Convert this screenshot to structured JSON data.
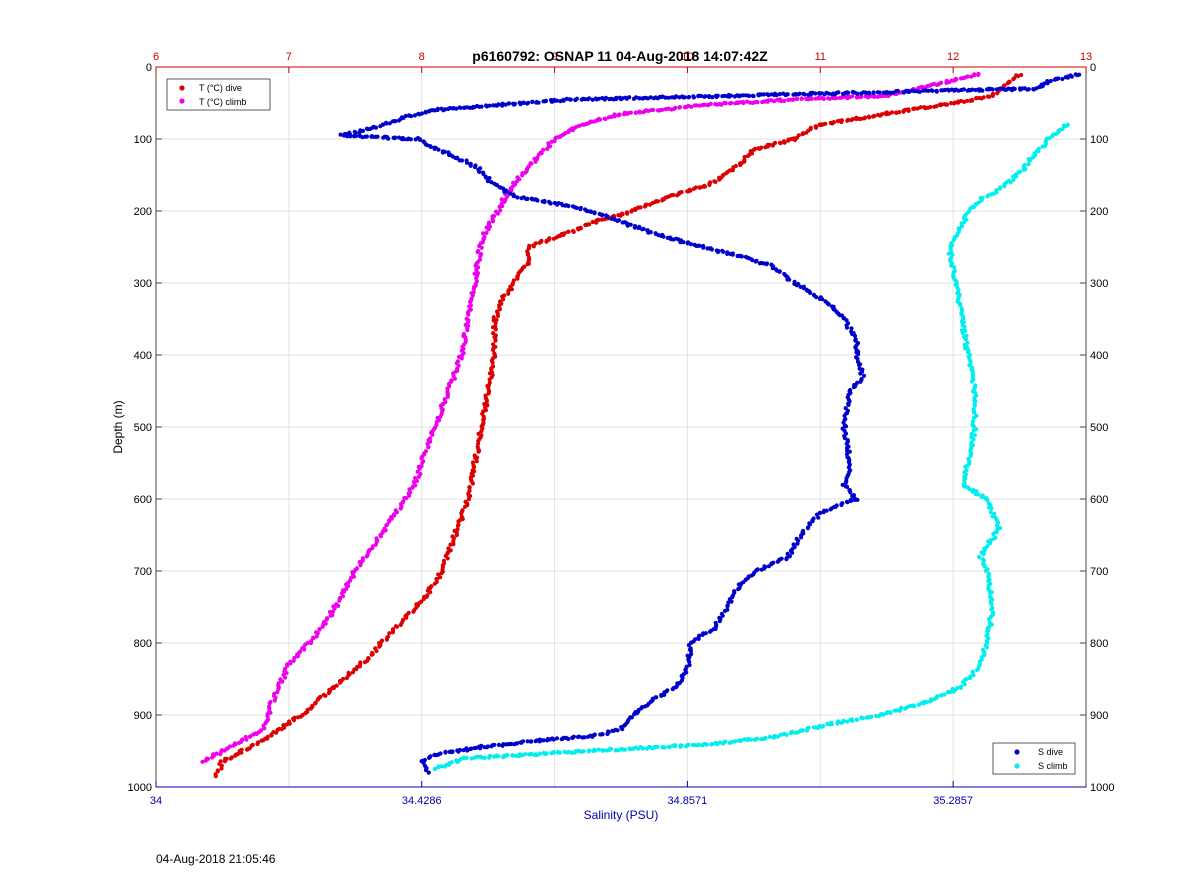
{
  "chart_data": {
    "type": "scatter",
    "title": "p6160792: OSNAP 11 04-Aug-2018 14:07:42Z",
    "ylabel": "Depth (m)",
    "xlabel_bottom": "Salinity (PSU)",
    "ylim": [
      0,
      1000
    ],
    "y_reversed": true,
    "y_ticks": [
      0,
      100,
      200,
      300,
      400,
      500,
      600,
      700,
      800,
      900,
      1000
    ],
    "x_top_axis": {
      "label": "",
      "range": [
        6,
        13
      ],
      "ticks": [
        "6",
        "7",
        "8",
        "9",
        "10",
        "11",
        "12",
        "13"
      ],
      "color": "#cc0000"
    },
    "x_bottom_axis": {
      "label": "Salinity (PSU)",
      "range": [
        34,
        35.5
      ],
      "ticks": [
        "34",
        "34.4286",
        "34.8571",
        "35.2857"
      ],
      "tick_values": [
        34,
        34.4286,
        34.8571,
        35.2857
      ],
      "color": "#0000aa"
    },
    "grid": true,
    "legend_top": {
      "placement": "top-left",
      "entries": [
        "T (°C) dive",
        "T (°C) climb"
      ]
    },
    "legend_bottom": {
      "placement": "bottom-right",
      "entries": [
        "S dive",
        "S climb"
      ]
    },
    "series": [
      {
        "name": "T (°C) dive",
        "axis": "top",
        "color": "#dd0000",
        "points": [
          [
            12.5,
            10
          ],
          [
            12.4,
            25
          ],
          [
            12.3,
            40
          ],
          [
            12.0,
            50
          ],
          [
            11.5,
            65
          ],
          [
            11.0,
            80
          ],
          [
            10.8,
            100
          ],
          [
            10.5,
            115
          ],
          [
            10.4,
            135
          ],
          [
            10.2,
            160
          ],
          [
            9.8,
            185
          ],
          [
            9.5,
            205
          ],
          [
            9.3,
            215
          ],
          [
            9.1,
            230
          ],
          [
            8.8,
            250
          ],
          [
            8.8,
            270
          ],
          [
            8.7,
            300
          ],
          [
            8.6,
            325
          ],
          [
            8.55,
            350
          ],
          [
            8.55,
            400
          ],
          [
            8.5,
            450
          ],
          [
            8.45,
            500
          ],
          [
            8.4,
            550
          ],
          [
            8.35,
            600
          ],
          [
            8.25,
            650
          ],
          [
            8.15,
            700
          ],
          [
            8.05,
            730
          ],
          [
            7.9,
            760
          ],
          [
            7.75,
            790
          ],
          [
            7.6,
            820
          ],
          [
            7.35,
            860
          ],
          [
            7.1,
            900
          ],
          [
            6.8,
            935
          ],
          [
            6.5,
            965
          ],
          [
            6.45,
            985
          ]
        ]
      },
      {
        "name": "T (°C) climb",
        "axis": "top",
        "color": "#ee00ee",
        "points": [
          [
            12.2,
            10
          ],
          [
            11.5,
            40
          ],
          [
            10.8,
            45
          ],
          [
            10.2,
            52
          ],
          [
            9.5,
            65
          ],
          [
            9.2,
            80
          ],
          [
            9.0,
            100
          ],
          [
            8.9,
            120
          ],
          [
            8.7,
            160
          ],
          [
            8.6,
            190
          ],
          [
            8.45,
            240
          ],
          [
            8.4,
            300
          ],
          [
            8.3,
            400
          ],
          [
            8.2,
            450
          ],
          [
            8.1,
            500
          ],
          [
            8.0,
            550
          ],
          [
            7.95,
            580
          ],
          [
            7.8,
            620
          ],
          [
            7.65,
            660
          ],
          [
            7.5,
            700
          ],
          [
            7.35,
            750
          ],
          [
            7.2,
            790
          ],
          [
            7.0,
            830
          ],
          [
            6.9,
            870
          ],
          [
            6.8,
            920
          ],
          [
            6.6,
            940
          ],
          [
            6.4,
            960
          ],
          [
            6.35,
            965
          ]
        ]
      },
      {
        "name": "S dive",
        "axis": "bottom",
        "color": "#0000cc",
        "points": [
          [
            35.49,
            10
          ],
          [
            35.44,
            20
          ],
          [
            35.42,
            30
          ],
          [
            34.67,
            45
          ],
          [
            34.52,
            55
          ],
          [
            34.45,
            60
          ],
          [
            34.4,
            70
          ],
          [
            34.35,
            85
          ],
          [
            34.3,
            95
          ],
          [
            34.42,
            100
          ],
          [
            34.47,
            120
          ],
          [
            34.52,
            140
          ],
          [
            34.54,
            160
          ],
          [
            34.58,
            180
          ],
          [
            34.65,
            190
          ],
          [
            34.7,
            200
          ],
          [
            34.75,
            215
          ],
          [
            34.8,
            230
          ],
          [
            34.88,
            250
          ],
          [
            34.93,
            260
          ],
          [
            34.99,
            275
          ],
          [
            35.03,
            300
          ],
          [
            35.08,
            325
          ],
          [
            35.11,
            350
          ],
          [
            35.13,
            380
          ],
          [
            35.13,
            400
          ],
          [
            35.14,
            430
          ],
          [
            35.12,
            450
          ],
          [
            35.11,
            500
          ],
          [
            35.12,
            550
          ],
          [
            35.11,
            580
          ],
          [
            35.13,
            600
          ],
          [
            35.07,
            620
          ],
          [
            35.04,
            650
          ],
          [
            35.02,
            680
          ],
          [
            34.97,
            700
          ],
          [
            34.94,
            720
          ],
          [
            34.92,
            750
          ],
          [
            34.9,
            780
          ],
          [
            34.86,
            800
          ],
          [
            34.86,
            830
          ],
          [
            34.84,
            860
          ],
          [
            34.8,
            880
          ],
          [
            34.77,
            900
          ],
          [
            34.75,
            920
          ],
          [
            34.7,
            930
          ],
          [
            34.62,
            935
          ],
          [
            34.52,
            945
          ],
          [
            34.45,
            955
          ],
          [
            34.43,
            965
          ],
          [
            34.44,
            980
          ]
        ]
      },
      {
        "name": "S climb",
        "axis": "bottom",
        "color": "#00eeee",
        "points": [
          [
            35.47,
            80
          ],
          [
            35.44,
            100
          ],
          [
            35.42,
            120
          ],
          [
            35.39,
            150
          ],
          [
            35.36,
            170
          ],
          [
            35.33,
            185
          ],
          [
            35.31,
            200
          ],
          [
            35.3,
            220
          ],
          [
            35.28,
            250
          ],
          [
            35.29,
            300
          ],
          [
            35.3,
            350
          ],
          [
            35.31,
            400
          ],
          [
            35.32,
            450
          ],
          [
            35.32,
            500
          ],
          [
            35.31,
            550
          ],
          [
            35.3,
            580
          ],
          [
            35.34,
            600
          ],
          [
            35.36,
            640
          ],
          [
            35.33,
            680
          ],
          [
            35.34,
            700
          ],
          [
            35.35,
            750
          ],
          [
            35.34,
            800
          ],
          [
            35.33,
            830
          ],
          [
            35.3,
            860
          ],
          [
            35.25,
            880
          ],
          [
            35.17,
            900
          ],
          [
            35.1,
            910
          ],
          [
            35.0,
            930
          ],
          [
            34.9,
            940
          ],
          [
            34.8,
            945
          ],
          [
            34.7,
            950
          ],
          [
            34.6,
            955
          ],
          [
            34.5,
            960
          ],
          [
            34.45,
            975
          ]
        ]
      }
    ]
  },
  "footer": {
    "timestamp": "04-Aug-2018 21:05:46"
  }
}
